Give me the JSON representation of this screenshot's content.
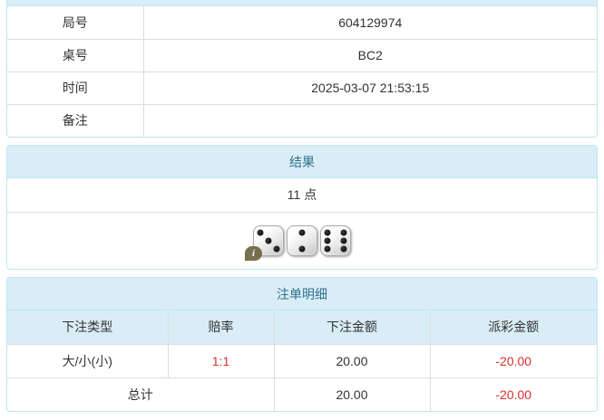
{
  "colors": {
    "header_bg": "#d9edf7",
    "header_text": "#31708f",
    "panel_border": "#bce8f1",
    "row_border": "#dddddd",
    "text": "#333333",
    "negative": "#dd2f2f"
  },
  "info_panel": {
    "rows": [
      {
        "label": "局号",
        "value": "604129974"
      },
      {
        "label": "桌号",
        "value": "BC2"
      },
      {
        "label": "时间",
        "value": "2025-03-07 21:53:15"
      },
      {
        "label": "备注",
        "value": ""
      }
    ]
  },
  "result_panel": {
    "title": "结果",
    "points": "11 点",
    "dice": [
      3,
      2,
      6
    ],
    "info_badge": "i"
  },
  "bets_panel": {
    "title": "注单明细",
    "columns": [
      "下注类型",
      "赔率",
      "下注金额",
      "派彩金额"
    ],
    "rows": [
      {
        "type": "大/小(小)",
        "odds": "1:1",
        "amount": "20.00",
        "payout": "-20.00"
      }
    ],
    "total": {
      "label": "总计",
      "amount": "20.00",
      "payout": "-20.00"
    }
  }
}
